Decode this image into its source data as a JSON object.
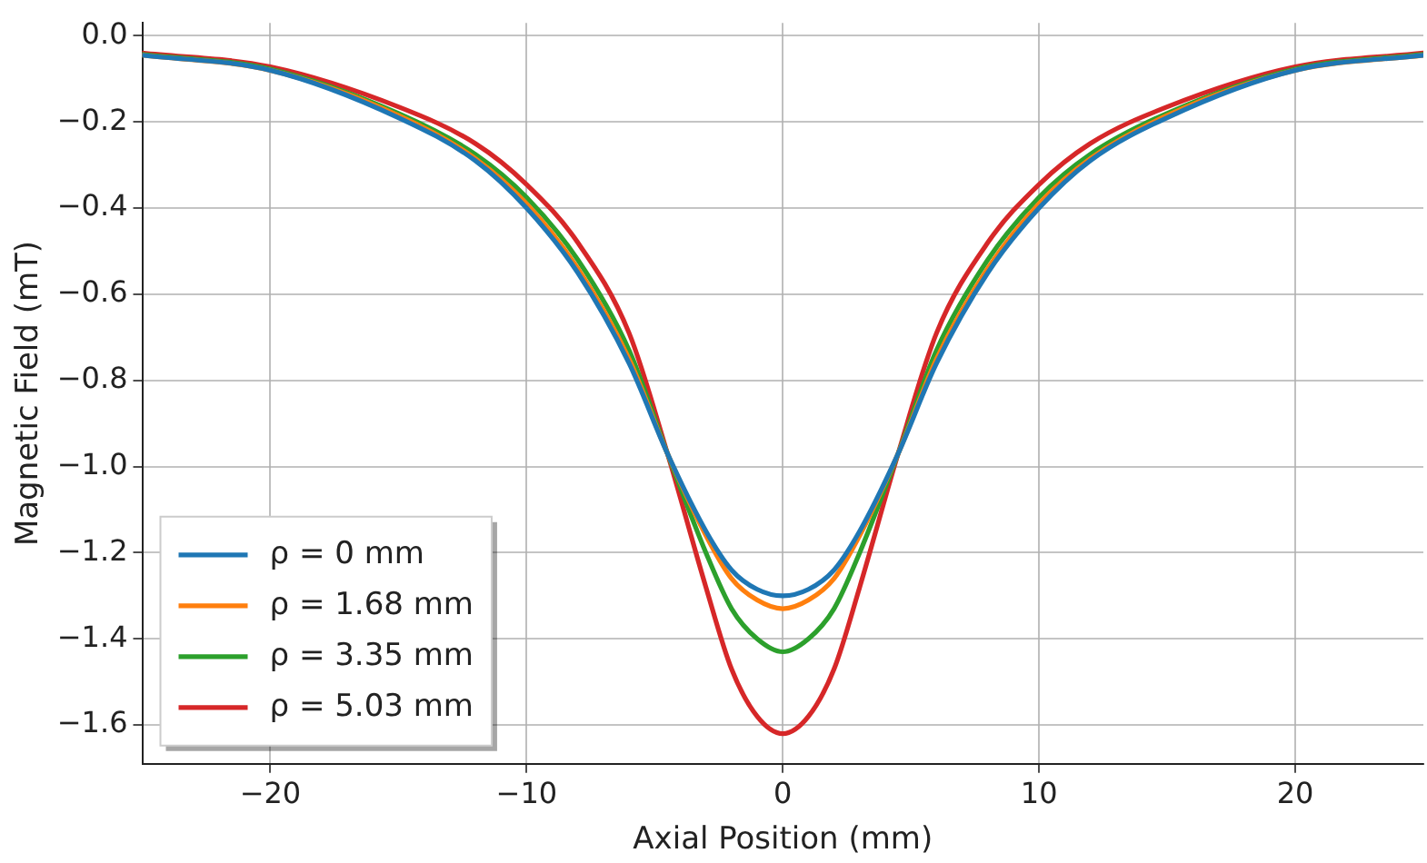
{
  "chart_data": {
    "type": "line",
    "xlabel": "Axial Position (mm)",
    "ylabel": "Magnetic Field (mT)",
    "x": [
      -25,
      -20,
      -15,
      -12,
      -10,
      -8,
      -6,
      -4.5,
      -3,
      -2,
      -1,
      0,
      1,
      2,
      3,
      4.5,
      6,
      8,
      10,
      12,
      15,
      20,
      25
    ],
    "series": [
      {
        "name": "ρ = 0 mm",
        "color": "#1f77b4",
        "values": [
          -0.045,
          -0.08,
          -0.19,
          -0.29,
          -0.4,
          -0.55,
          -0.76,
          -0.97,
          -1.15,
          -1.24,
          -1.285,
          -1.3,
          -1.285,
          -1.24,
          -1.15,
          -0.97,
          -0.76,
          -0.55,
          -0.4,
          -0.29,
          -0.19,
          -0.08,
          -0.045
        ]
      },
      {
        "name": "ρ = 1.68 mm",
        "color": "#ff7f0e",
        "values": [
          -0.045,
          -0.08,
          -0.185,
          -0.285,
          -0.39,
          -0.54,
          -0.75,
          -0.97,
          -1.16,
          -1.26,
          -1.31,
          -1.33,
          -1.31,
          -1.26,
          -1.16,
          -0.97,
          -0.75,
          -0.54,
          -0.39,
          -0.285,
          -0.185,
          -0.08,
          -0.045
        ]
      },
      {
        "name": "ρ = 3.35 mm",
        "color": "#2ca02c",
        "values": [
          -0.043,
          -0.077,
          -0.18,
          -0.275,
          -0.375,
          -0.52,
          -0.73,
          -0.97,
          -1.2,
          -1.33,
          -1.4,
          -1.43,
          -1.4,
          -1.33,
          -1.2,
          -0.97,
          -0.73,
          -0.52,
          -0.375,
          -0.275,
          -0.18,
          -0.077,
          -0.043
        ]
      },
      {
        "name": "ρ = 5.03 mm",
        "color": "#d62728",
        "values": [
          -0.04,
          -0.072,
          -0.165,
          -0.25,
          -0.345,
          -0.48,
          -0.69,
          -0.97,
          -1.28,
          -1.47,
          -1.58,
          -1.62,
          -1.58,
          -1.47,
          -1.28,
          -0.97,
          -0.69,
          -0.48,
          -0.345,
          -0.25,
          -0.165,
          -0.072,
          -0.04
        ]
      }
    ],
    "xlim": [
      -25,
      25
    ],
    "xticks": [
      {
        "value": -20,
        "label": "−20"
      },
      {
        "value": -10,
        "label": "−10"
      },
      0,
      10,
      20
    ],
    "ylim": [
      -1.69,
      0.03
    ],
    "yticks": [
      {
        "value": 0,
        "label": "0.0"
      },
      {
        "value": -0.2,
        "label": "−0.2"
      },
      {
        "value": -0.4,
        "label": "−0.4"
      },
      {
        "value": -0.6,
        "label": "−0.6"
      },
      {
        "value": -0.8,
        "label": "−0.8"
      },
      {
        "value": -1,
        "label": "−1.0"
      },
      {
        "value": -1.2,
        "label": "−1.2"
      },
      {
        "value": -1.4,
        "label": "−1.4"
      },
      {
        "value": -1.6,
        "label": "−1.6"
      }
    ],
    "grid": true,
    "legend": "bottom left",
    "marker": "none",
    "line_style": "solid"
  }
}
